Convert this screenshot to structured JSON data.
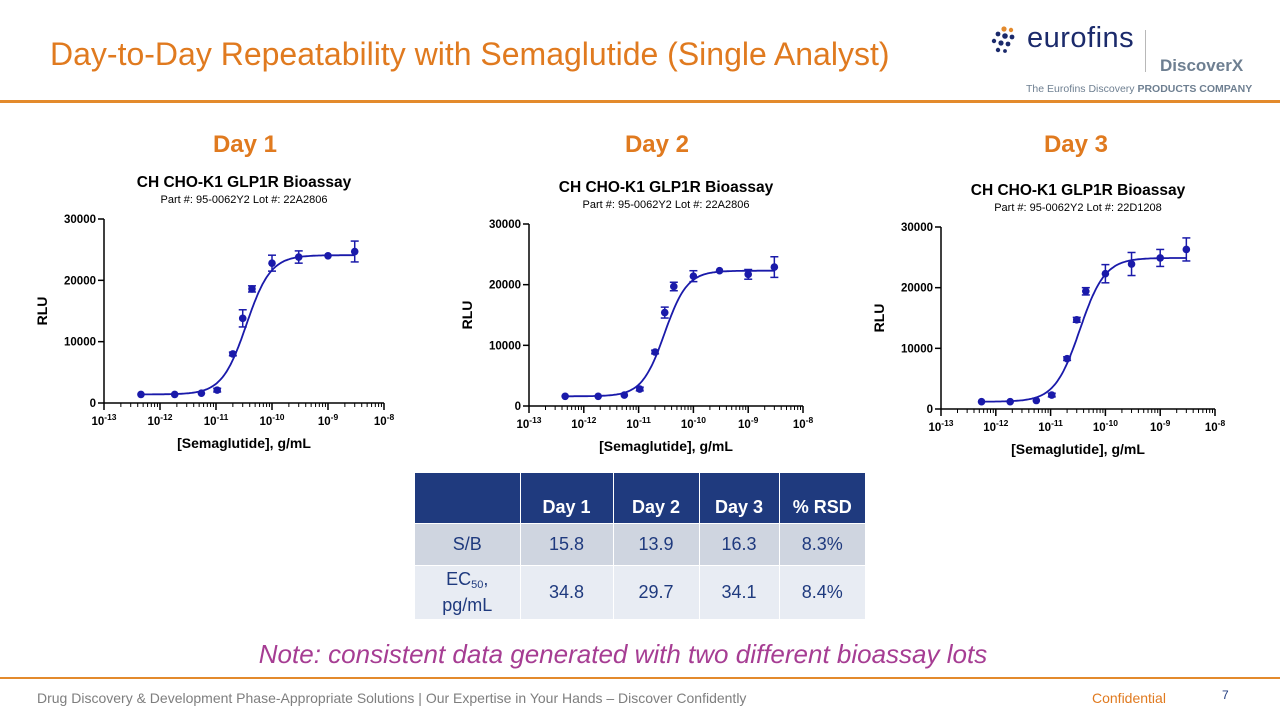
{
  "slide": {
    "title": "Day-to-Day Repeatability with Semaglutide (Single Analyst)",
    "note": "Note: consistent data generated with two different bioassay lots"
  },
  "logo": {
    "word": "eurofins",
    "brand": "DiscoverX",
    "tagline_prefix": "The Eurofins Discovery",
    "tagline_bold": "PRODUCTS COMPANY"
  },
  "footer": {
    "text": "Drug Discovery & Development Phase-Appropriate Solutions | Our Expertise in Your Hands – Discover Confidently",
    "confidential": "Confidential",
    "page": "7"
  },
  "colors": {
    "accent": "#E07A1F",
    "navy": "#1F3A7E",
    "curve": "#1A1AAA",
    "note": "#A63D93"
  },
  "days": [
    {
      "label": "Day 1"
    },
    {
      "label": "Day 2"
    },
    {
      "label": "Day 3"
    }
  ],
  "chart_data": [
    {
      "type": "scatter",
      "fit": "4PL",
      "title": "CH CHO-K1 GLP1R Bioassay",
      "subtitle": "Part #:  95-0062Y2  Lot #: 22A2806",
      "xlabel": "[Semaglutide], g/mL",
      "ylabel": "RLU",
      "x_scale": "log10",
      "xlim": [
        -13,
        -8
      ],
      "ylim": [
        0,
        30000
      ],
      "x_ticks": [
        "-13",
        "-12",
        "-11",
        "-10",
        "-9",
        "-8"
      ],
      "y_ticks": [
        0,
        10000,
        20000,
        30000
      ],
      "x": [
        4.57e-13,
        1.83e-12,
        5.49e-12,
        1.05e-11,
        2e-11,
        3e-11,
        4.39e-11,
        1e-10,
        3e-10,
        1e-09,
        3e-09
      ],
      "y": [
        1400,
        1400,
        1600,
        2100,
        8000,
        13800,
        18600,
        22800,
        23800,
        24000,
        24700
      ],
      "error": [
        0,
        0,
        0,
        300,
        300,
        1400,
        500,
        1300,
        1000,
        0,
        1700
      ],
      "fit_params": {
        "bottom": 1400,
        "top": 24100,
        "ec50": 3.48e-11,
        "hill": 2.0
      }
    },
    {
      "type": "scatter",
      "fit": "4PL",
      "title": "CH CHO-K1 GLP1R Bioassay",
      "subtitle": "Part #:  95-0062Y2  Lot #: 22A2806",
      "xlabel": "[Semaglutide], g/mL",
      "ylabel": "RLU",
      "x_scale": "log10",
      "xlim": [
        -13,
        -8
      ],
      "ylim": [
        0,
        30000
      ],
      "x_ticks": [
        "-13",
        "-12",
        "-11",
        "-10",
        "-9",
        "-8"
      ],
      "y_ticks": [
        0,
        10000,
        20000,
        30000
      ],
      "x": [
        4.57e-13,
        1.83e-12,
        5.49e-12,
        1.05e-11,
        2e-11,
        3e-11,
        4.39e-11,
        1e-10,
        3e-10,
        1e-09,
        3e-09
      ],
      "y": [
        1600,
        1600,
        1800,
        2800,
        8900,
        15400,
        19700,
        21400,
        22300,
        21700,
        22900
      ],
      "error": [
        0,
        0,
        0,
        300,
        300,
        900,
        700,
        900,
        0,
        800,
        1700
      ],
      "fit_params": {
        "bottom": 1600,
        "top": 22300,
        "ec50": 2.97e-11,
        "hill": 2.1
      }
    },
    {
      "type": "scatter",
      "fit": "4PL",
      "title": "CH CHO-K1 GLP1R Bioassay",
      "subtitle": "Part #:  95-0062Y2  Lot #: 22D1208",
      "xlabel": "[Semaglutide], g/mL",
      "ylabel": "RLU",
      "x_scale": "log10",
      "xlim": [
        -13,
        -8
      ],
      "ylim": [
        0,
        30000
      ],
      "x_ticks": [
        "-13",
        "-12",
        "-11",
        "-10",
        "-9",
        "-8"
      ],
      "y_ticks": [
        0,
        10000,
        20000,
        30000
      ],
      "x": [
        5.49e-13,
        1.83e-12,
        5.49e-12,
        1.05e-11,
        2e-11,
        3e-11,
        4.39e-11,
        1e-10,
        3e-10,
        1e-09,
        3e-09
      ],
      "y": [
        1200,
        1200,
        1400,
        2300,
        8300,
        14700,
        19400,
        22300,
        23900,
        24900,
        26300
      ],
      "error": [
        0,
        0,
        0,
        300,
        300,
        400,
        600,
        1500,
        1900,
        1400,
        1900
      ],
      "fit_params": {
        "bottom": 1200,
        "top": 24900,
        "ec50": 3.41e-11,
        "hill": 1.9
      }
    }
  ],
  "table": {
    "headers": [
      "",
      "Day 1",
      "Day 2",
      "Day 3",
      "% RSD"
    ],
    "rows": [
      {
        "label": "S/B",
        "values": [
          "15.8",
          "13.9",
          "16.3",
          "8.3%"
        ]
      },
      {
        "label_main": "EC",
        "label_sub": "50",
        "label_rest": ",",
        "label_line2": "pg/mL",
        "values": [
          "34.8",
          "29.7",
          "34.1",
          "8.4%"
        ]
      }
    ]
  }
}
